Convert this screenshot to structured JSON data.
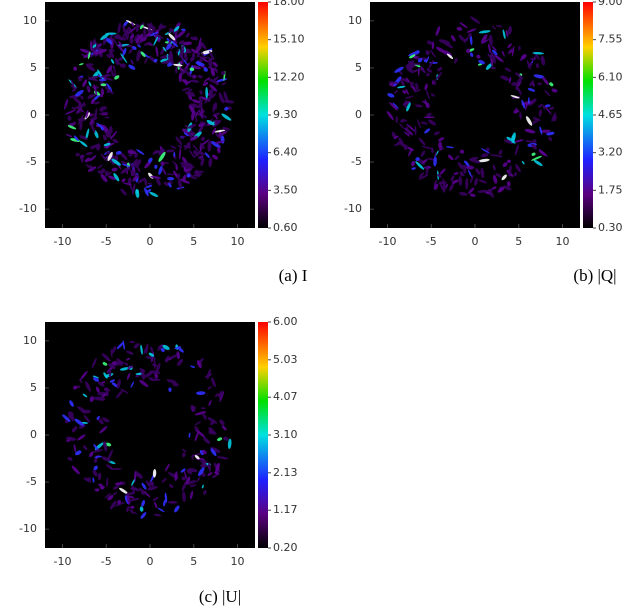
{
  "chart_data": [
    {
      "type": "heatmap",
      "caption": "(a) I",
      "xlim": [
        -12,
        12
      ],
      "ylim": [
        -12,
        12
      ],
      "xticks": [
        -10,
        -5,
        0,
        5,
        10
      ],
      "yticks": [
        -10,
        -5,
        0,
        5,
        10
      ],
      "clim": [
        0.6,
        18
      ],
      "cticks": [
        {
          "value": 0.6,
          "label": "0.60"
        },
        {
          "value": 3.5,
          "label": "3.50"
        },
        {
          "value": 6.4,
          "label": "6.40"
        },
        {
          "value": 9.3,
          "label": "9.30"
        },
        {
          "value": 12.2,
          "label": "12.20"
        },
        {
          "value": 15.1,
          "label": "15.10"
        },
        {
          "value": 18,
          "label": "18.00"
        }
      ]
    },
    {
      "type": "heatmap",
      "caption": "(b) |Q|",
      "xlim": [
        -12,
        12
      ],
      "ylim": [
        -12,
        12
      ],
      "xticks": [
        -10,
        -5,
        0,
        5,
        10
      ],
      "yticks": [
        -10,
        -5,
        0,
        5,
        10
      ],
      "clim": [
        0.3,
        9
      ],
      "cticks": [
        {
          "value": 0.3,
          "label": "0.30"
        },
        {
          "value": 1.75,
          "label": "1.75"
        },
        {
          "value": 3.2,
          "label": "3.20"
        },
        {
          "value": 4.65,
          "label": "4.65"
        },
        {
          "value": 6.1,
          "label": "6.10"
        },
        {
          "value": 7.55,
          "label": "7.55"
        },
        {
          "value": 9,
          "label": "9.00"
        }
      ]
    },
    {
      "type": "heatmap",
      "caption": "(c) |U|",
      "xlim": [
        -12,
        12
      ],
      "ylim": [
        -12,
        12
      ],
      "xticks": [
        -10,
        -5,
        0,
        5,
        10
      ],
      "yticks": [
        -10,
        -5,
        0,
        5,
        10
      ],
      "clim": [
        0.2,
        6
      ],
      "cticks": [
        {
          "value": 0.2,
          "label": "0.20"
        },
        {
          "value": 1.17,
          "label": "1.17"
        },
        {
          "value": 2.13,
          "label": "2.13"
        },
        {
          "value": 3.1,
          "label": "3.10"
        },
        {
          "value": 4.07,
          "label": "4.07"
        },
        {
          "value": 5.03,
          "label": "5.03"
        },
        {
          "value": 6,
          "label": "6.00"
        }
      ]
    }
  ]
}
